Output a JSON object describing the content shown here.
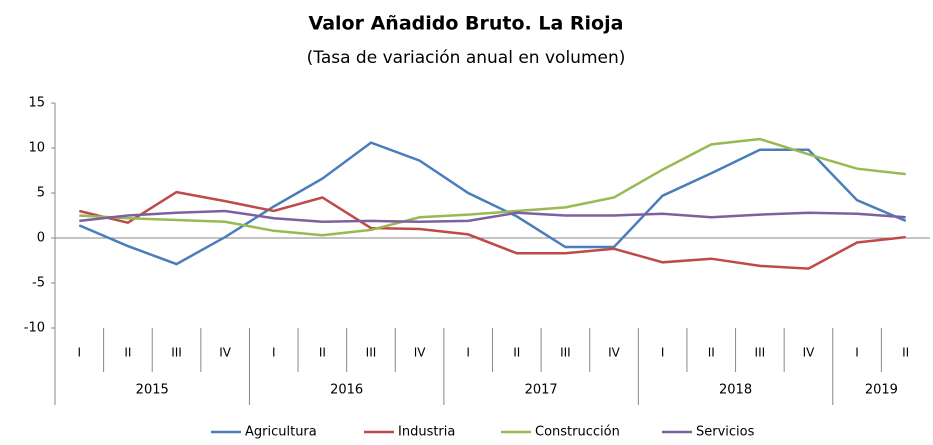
{
  "chart_data": {
    "type": "line",
    "title": "Valor Añadido Bruto. La Rioja",
    "subtitle": "(Tasa de variación anual en volumen)",
    "categories": [
      "I",
      "II",
      "III",
      "IV",
      "I",
      "II",
      "III",
      "IV",
      "I",
      "II",
      "III",
      "IV",
      "I",
      "II",
      "III",
      "IV",
      "I",
      "II"
    ],
    "years": [
      "2015",
      "2016",
      "2017",
      "2018",
      "2019"
    ],
    "series": [
      {
        "name": "Agricultura",
        "color": "#4a7ebb",
        "values": [
          1.4,
          -0.9,
          -2.9,
          0.1,
          3.5,
          6.6,
          10.6,
          8.6,
          5.0,
          2.4,
          -1.0,
          -1.0,
          4.7,
          7.2,
          9.8,
          9.8,
          4.2,
          1.9
        ]
      },
      {
        "name": "Industria",
        "color": "#be4b48",
        "values": [
          3.0,
          1.7,
          5.1,
          4.1,
          3.0,
          4.5,
          1.1,
          1.0,
          0.4,
          -1.7,
          -1.7,
          -1.2,
          -2.7,
          -2.3,
          -3.1,
          -3.4,
          -0.5,
          0.1
        ]
      },
      {
        "name": "Construcción",
        "color": "#98b954",
        "values": [
          2.5,
          2.2,
          2.0,
          1.8,
          0.8,
          0.3,
          0.9,
          2.3,
          2.6,
          3.0,
          3.4,
          4.5,
          7.6,
          10.4,
          11.0,
          9.3,
          7.7,
          7.1
        ]
      },
      {
        "name": "Servicios",
        "color": "#7d60a0",
        "values": [
          1.9,
          2.5,
          2.8,
          3.0,
          2.2,
          1.8,
          1.9,
          1.8,
          1.9,
          2.8,
          2.5,
          2.5,
          2.7,
          2.3,
          2.6,
          2.8,
          2.7,
          2.3
        ]
      }
    ],
    "ylim": [
      -10,
      15
    ],
    "yticks": [
      -10,
      -5,
      0,
      5,
      10,
      15
    ],
    "grid": false,
    "legend": "bottom"
  }
}
